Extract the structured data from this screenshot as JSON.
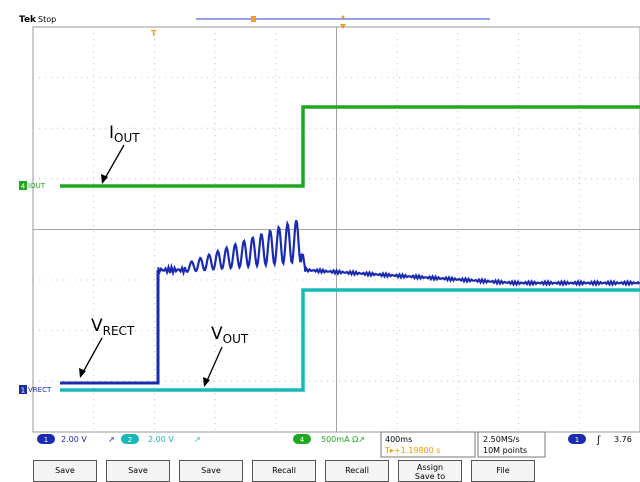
{
  "header": {
    "brand": "Tek",
    "state": "Stop",
    "trigger_marker": "T"
  },
  "traces": {
    "iout_label": "IOUT",
    "vrect_label": "VRECT",
    "iout_channel": "4",
    "vrect_channel": "1"
  },
  "annotations": {
    "iout_main": "I",
    "iout_sub": "OUT",
    "vrect_main": "V",
    "vrect_sub": "RECT",
    "vout_main": "V",
    "vout_sub": "OUT"
  },
  "status": {
    "ch1_num": "1",
    "ch1_scale": "2.00 V",
    "ch1_bw": "↗",
    "ch2_num": "2",
    "ch2_scale": "2.00 V",
    "ch2_bw": "↗",
    "ch4_num": "4",
    "ch4_scale": "500mA Ω↗",
    "timebase": "400ms",
    "trig_pos": "T▸+1.19800 s",
    "samplerate": "2.50MS/s",
    "points": "10M points",
    "trig_ch": "1",
    "trig_slope": "ʃ",
    "trig_level": "3.76"
  },
  "softkeys": [
    {
      "line1": "Save",
      "line2": ""
    },
    {
      "line1": "Save",
      "line2": ""
    },
    {
      "line1": "Save",
      "line2": ""
    },
    {
      "line1": "Recall",
      "line2": ""
    },
    {
      "line1": "Recall",
      "line2": ""
    },
    {
      "line1": "Assign",
      "line2": "Save to"
    },
    {
      "line1": "File",
      "line2": ""
    }
  ],
  "colors": {
    "ch1": "#1b2bb0",
    "ch2": "#19b8b8",
    "ch4": "#1fa81f",
    "trigger": "#f0a020",
    "grid": "#9a9a9a"
  }
}
